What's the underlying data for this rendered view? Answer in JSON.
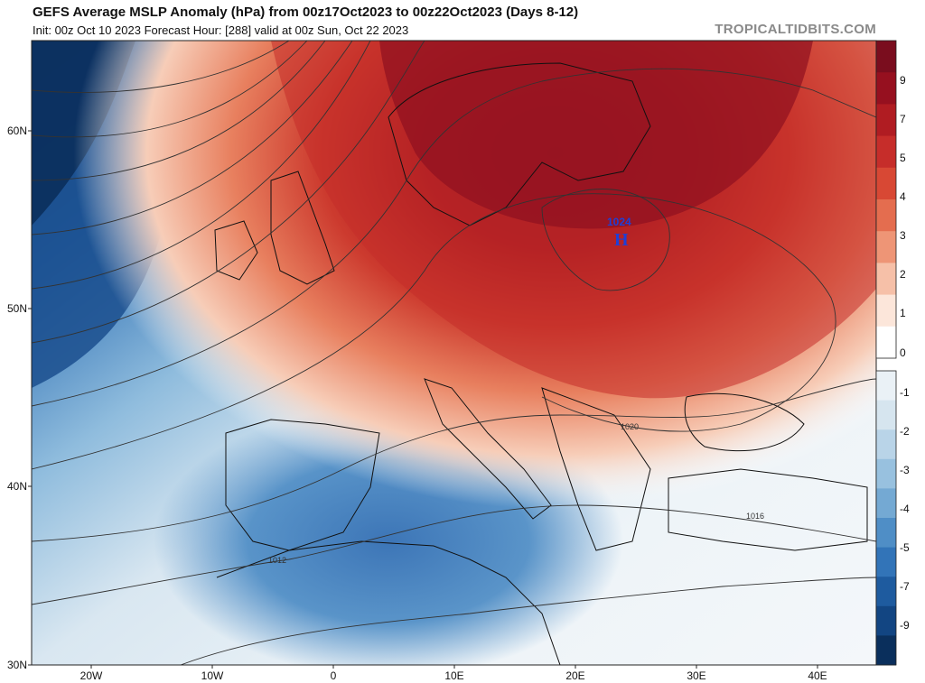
{
  "header": {
    "title": "GEFS Average MSLP Anomaly (hPa) from 00z17Oct2023 to 00z22Oct2023 (Days 8-12)",
    "subtitle": "Init: 00z Oct 10 2023   Forecast Hour: [288]   valid at 00z Sun, Oct 22 2023",
    "credit": "TROPICALTIDBITS.COM"
  },
  "map": {
    "lon_range": [
      -25,
      45
    ],
    "lat_range": [
      30,
      65
    ],
    "lat_labels": [
      "60N",
      "50N",
      "40N",
      "30N"
    ],
    "lon_labels": [
      "20W",
      "10W",
      "0",
      "10E",
      "20E",
      "30E",
      "40E"
    ],
    "isobar_labels": [
      "1024",
      "1020",
      "1016",
      "1012"
    ],
    "high_center": {
      "symbol": "H",
      "pressure": "1024"
    }
  },
  "colorbar": {
    "positive_ticks": [
      "9",
      "7",
      "5",
      "4",
      "3",
      "2",
      "1",
      "0"
    ],
    "negative_ticks": [
      "-1",
      "-2",
      "-3",
      "-4",
      "-5",
      "-7",
      "-9"
    ],
    "positive_colors": [
      "#7a0d1e",
      "#96101f",
      "#b01c22",
      "#c62d2a",
      "#d84834",
      "#e46d4f",
      "#ee9576",
      "#f6c0a8",
      "#fce6da",
      "#ffffff"
    ],
    "negative_colors": [
      "#eaf1f6",
      "#d6e5ef",
      "#b9d4e8",
      "#98c1df",
      "#74a9d3",
      "#4f8ec6",
      "#3274b8",
      "#1e5b9f",
      "#124582",
      "#0a2f5c"
    ]
  }
}
